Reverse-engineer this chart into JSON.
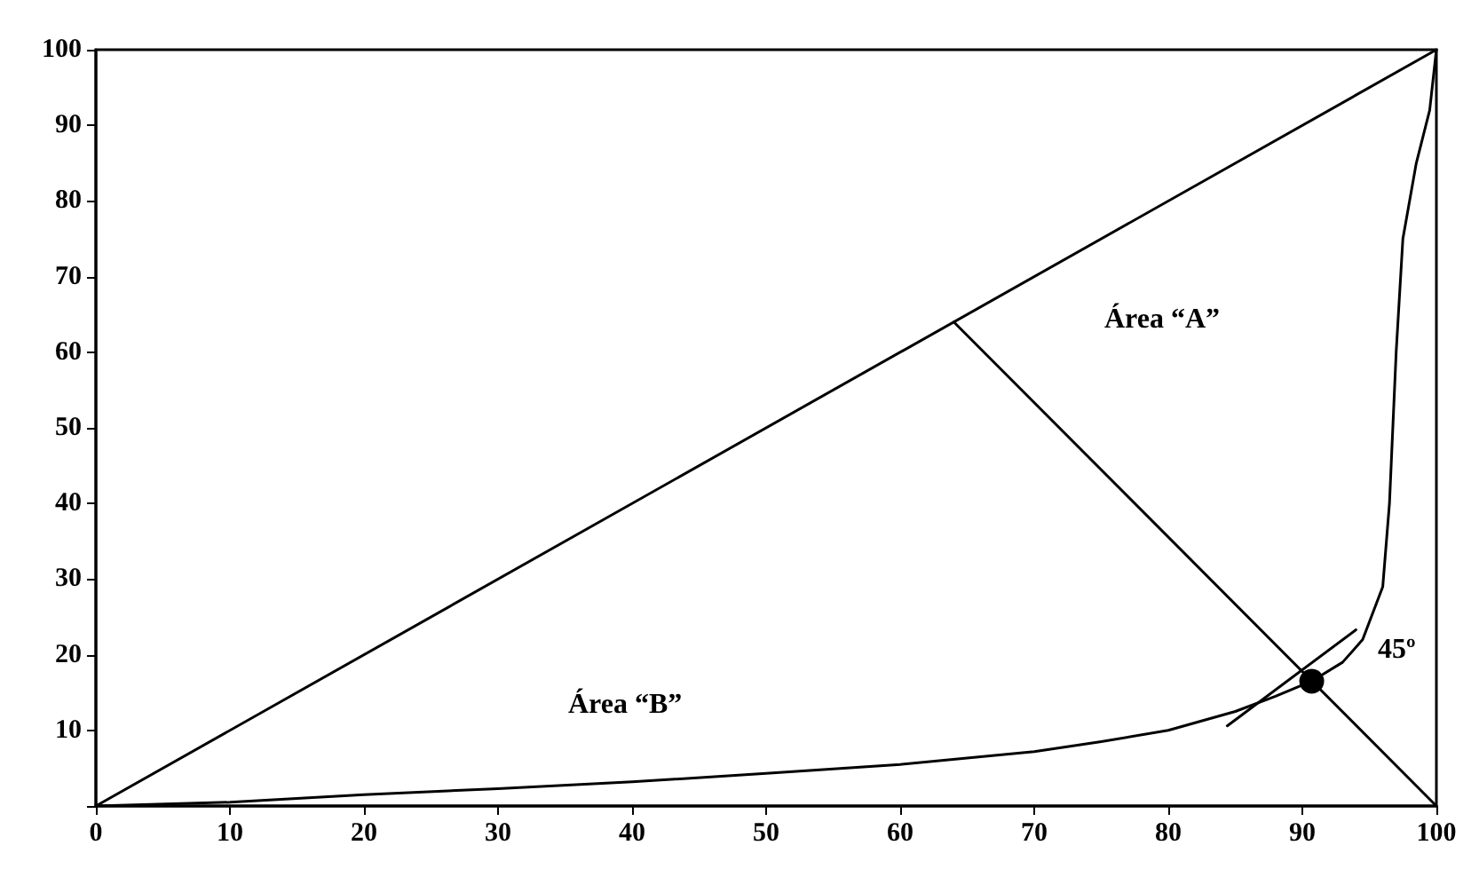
{
  "chart_data": {
    "type": "line",
    "xlim": [
      0,
      100
    ],
    "ylim": [
      0,
      100
    ],
    "xticks": [
      0,
      10,
      20,
      30,
      40,
      50,
      60,
      70,
      80,
      90,
      100
    ],
    "yticks": [
      {
        "value": 0,
        "label": null
      },
      10,
      20,
      30,
      40,
      50,
      60,
      70,
      80,
      90,
      100
    ],
    "grid": false,
    "marker": "none",
    "line_style": "solid",
    "series": [
      {
        "color": "#000000",
        "x": [
          0,
          100
        ],
        "values": [
          0,
          100
        ]
      },
      {
        "color": "#000000",
        "x": [
          64,
          100
        ],
        "values": [
          64,
          0
        ]
      },
      {
        "color": "#000000",
        "x": [
          0,
          10,
          20,
          30,
          40,
          50,
          60,
          70,
          75,
          80,
          85,
          88,
          90.7,
          93,
          94.5,
          96,
          96.5,
          97,
          97.5,
          98.5,
          99.5,
          100
        ],
        "values": [
          0,
          0.5,
          1.5,
          2.3,
          3.2,
          4.3,
          5.5,
          7.2,
          8.5,
          10,
          12.5,
          14.5,
          16.5,
          19,
          22,
          29,
          40,
          60,
          75,
          85,
          92,
          100
        ]
      },
      {
        "color": "#000000",
        "x": [
          84.4,
          94
        ],
        "values": [
          10.6,
          23.3
        ]
      },
      {
        "type": "scatter",
        "marker": "circle",
        "color": "#000000",
        "x": [
          90.7
        ],
        "values": [
          16.5
        ]
      }
    ],
    "annotations": [
      "Área “A”",
      "Área “B”",
      "45º"
    ]
  }
}
